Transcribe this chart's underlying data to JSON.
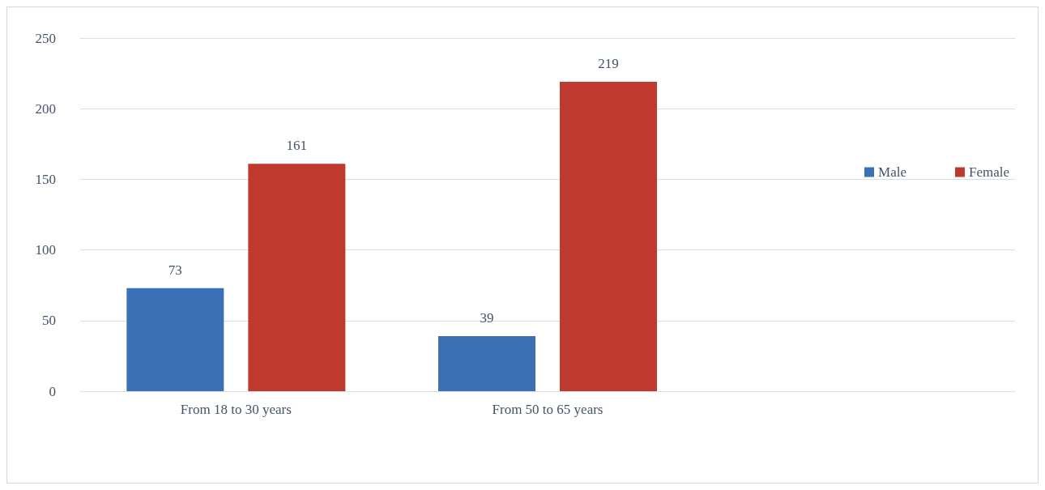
{
  "chart_data": {
    "type": "bar",
    "categories": [
      "From 18 to 30 years",
      "From 50 to 65 years",
      null
    ],
    "series": [
      {
        "name": "Male",
        "color": "#3b6fb6",
        "values": [
          73,
          39,
          null
        ]
      },
      {
        "name": "Female",
        "color": "#c0392f",
        "values": [
          161,
          219,
          null
        ]
      }
    ],
    "ylim": [
      0,
      250
    ],
    "yticks": [
      0,
      50,
      100,
      150,
      200,
      250
    ],
    "grid": "y",
    "legend": "right",
    "data_labels": true
  }
}
